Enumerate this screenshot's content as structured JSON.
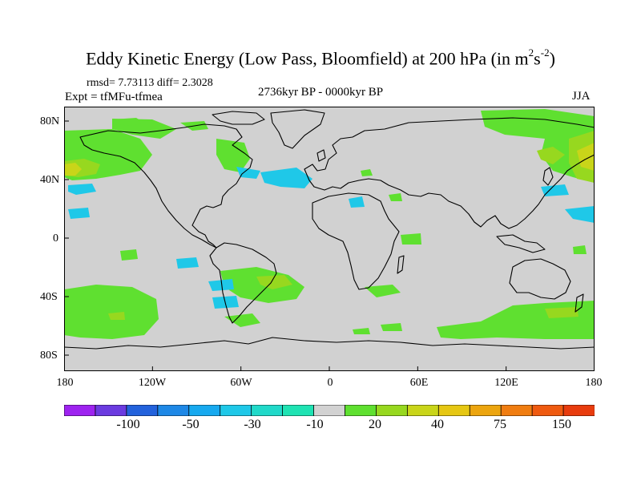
{
  "title": {
    "main": "Eddy Kinetic Energy (Low Pass, Bloomfield) at 200 hPa (in m",
    "exp1": "2",
    "mid": "s",
    "exp2": "-2",
    "close": ")"
  },
  "stats": "rmsd= 7.73113 diff= 2.3028",
  "expt": "Expt = tfMFu-tfmea",
  "period": "2736kyr BP - 0000kyr BP",
  "season": "JJA",
  "map": {
    "lat_ticks": [
      "80N",
      "40N",
      "0",
      "40S",
      "80S"
    ],
    "lon_ticks": [
      "180",
      "120W",
      "60W",
      "0",
      "60E",
      "120E",
      "180"
    ],
    "background_color": "#d1d1d1",
    "coast_color": "#000000"
  },
  "colorbar": {
    "colors": [
      "#9e23f0",
      "#6b3be0",
      "#2362dc",
      "#1e88e6",
      "#17a9ef",
      "#1fc8e8",
      "#20d9c9",
      "#1fe3b3",
      "#d2d2d2",
      "#5fe030",
      "#97d81f",
      "#c9d519",
      "#e6c713",
      "#eca50f",
      "#f07d11",
      "#ef5a10",
      "#e83c0e"
    ],
    "labels": [
      "-100",
      "-50",
      "-30",
      "-10",
      "20",
      "40",
      "75",
      "150"
    ]
  }
}
